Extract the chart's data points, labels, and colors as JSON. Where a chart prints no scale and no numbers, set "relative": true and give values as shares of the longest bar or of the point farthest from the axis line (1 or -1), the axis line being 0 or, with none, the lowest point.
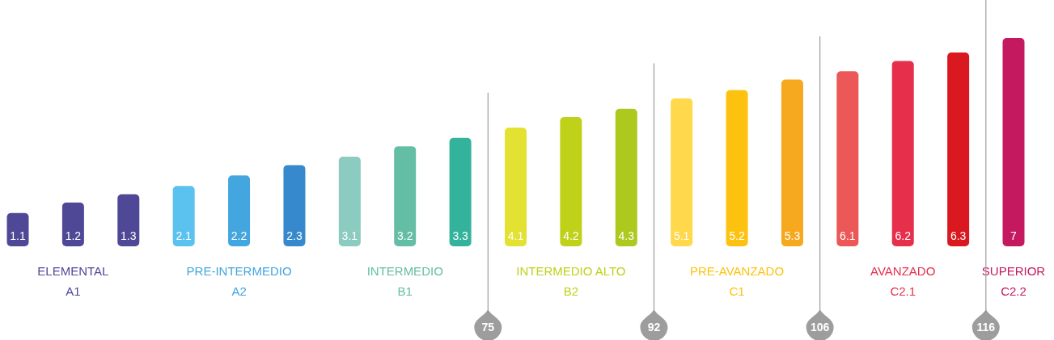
{
  "chart_data": {
    "type": "bar",
    "relative": true,
    "categories": [
      "1.1",
      "1.2",
      "1.3",
      "2.1",
      "2.2",
      "2.3",
      "3.1",
      "3.2",
      "3.3",
      "4.1",
      "4.2",
      "4.3",
      "5.1",
      "5.2",
      "5.3",
      "6.1",
      "6.2",
      "6.3",
      "7"
    ],
    "values": [
      0.16,
      0.21,
      0.25,
      0.29,
      0.34,
      0.39,
      0.43,
      0.48,
      0.52,
      0.57,
      0.62,
      0.66,
      0.71,
      0.75,
      0.8,
      0.84,
      0.89,
      0.93,
      1
    ],
    "colors": [
      "#4f4897",
      "#4f4897",
      "#4f4897",
      "#5bc2ef",
      "#44a6de",
      "#3589cc",
      "#8ccbbf",
      "#64bea5",
      "#34b39c",
      "#e3e132",
      "#bfd119",
      "#adc91d",
      "#ffd84b",
      "#fdc210",
      "#f6a81f",
      "#ec5757",
      "#e62f4b",
      "#d9181f",
      "#c4195f"
    ],
    "annotations": [
      "ELEMENTAL\nA1",
      "PRE-INTERMEDIO\nA2",
      "INTERMEDIO\nB1",
      "INTERMEDIO ALTO\nB2",
      "PRE-AVANZADO\nC1",
      "AVANZADO\nC2.1",
      "SUPERIOR\nC2.2",
      "75",
      "92",
      "106",
      "116"
    ]
  }
}
